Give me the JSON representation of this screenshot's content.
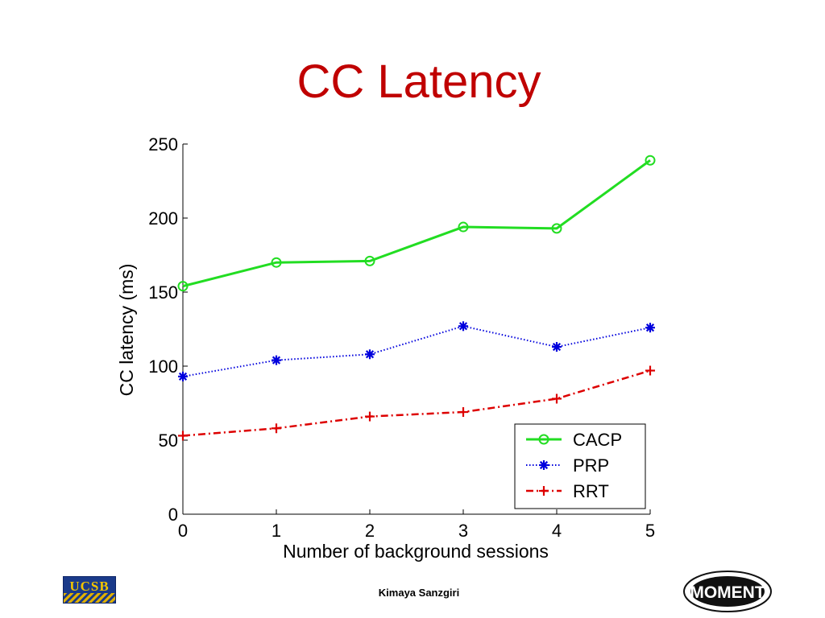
{
  "slide": {
    "title": "CC Latency",
    "presenter": "Kimaya Sanzgiri",
    "left_logo_text": "UCSB",
    "right_logo_text": "MOMENT"
  },
  "colors": {
    "title": "#c00000",
    "CACP": "#22dd22",
    "PRP": "#0000dd",
    "RRT": "#dd0000"
  },
  "chart_data": {
    "type": "line",
    "title": "",
    "xlabel": "Number of background sessions",
    "ylabel": "CC latency (ms)",
    "x": [
      0,
      1,
      2,
      3,
      4,
      5
    ],
    "xlim": [
      0,
      5
    ],
    "ylim": [
      0,
      250
    ],
    "xticks": [
      0,
      1,
      2,
      3,
      4,
      5
    ],
    "yticks": [
      0,
      50,
      100,
      150,
      200,
      250
    ],
    "grid": false,
    "legend_position": "bottom-right",
    "series": [
      {
        "name": "CACP",
        "marker": "circle",
        "line_style": "solid",
        "color": "#22dd22",
        "values": [
          154,
          170,
          171,
          194,
          193,
          239
        ]
      },
      {
        "name": "PRP",
        "marker": "asterisk",
        "line_style": "dotted",
        "color": "#0000dd",
        "values": [
          93,
          104,
          108,
          127,
          113,
          126
        ]
      },
      {
        "name": "RRT",
        "marker": "plus",
        "line_style": "dash-dot",
        "color": "#dd0000",
        "values": [
          53,
          58,
          66,
          69,
          78,
          97
        ]
      }
    ]
  }
}
